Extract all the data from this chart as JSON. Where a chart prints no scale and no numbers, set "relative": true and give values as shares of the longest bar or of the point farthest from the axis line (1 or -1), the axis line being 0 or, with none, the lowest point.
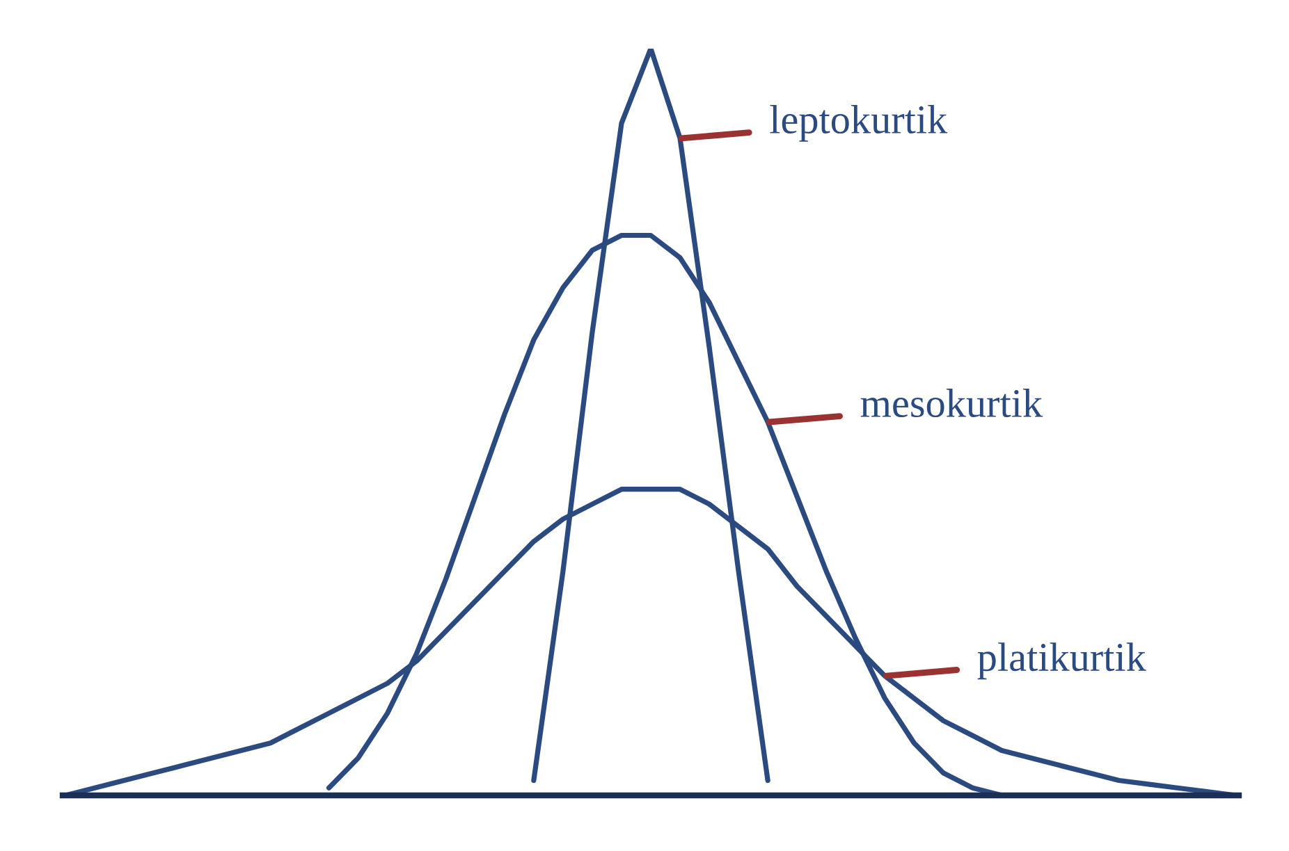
{
  "chart_data": {
    "type": "line",
    "relative": true,
    "categories": [
      null,
      null,
      null,
      null,
      null,
      null,
      null,
      null,
      null,
      null,
      null,
      null,
      null,
      null,
      null,
      null,
      null,
      null,
      null,
      null,
      null,
      null,
      null,
      null,
      null,
      null,
      null,
      null,
      null,
      null,
      null,
      null,
      null,
      null,
      null,
      null,
      null,
      null,
      null,
      null,
      null
    ],
    "series": [
      {
        "name": "leptokurtik",
        "color": "#2b4a80",
        "values": [
          null,
          null,
          null,
          null,
          null,
          null,
          null,
          null,
          null,
          null,
          null,
          null,
          null,
          null,
          null,
          null,
          0.02,
          0.3,
          0.62,
          0.9,
          1.0,
          0.88,
          0.6,
          0.3,
          0.02,
          null,
          null,
          null,
          null,
          null,
          null,
          null,
          null,
          null,
          null,
          null,
          null,
          null,
          null,
          null,
          null
        ]
      },
      {
        "name": "mesokurtik",
        "color": "#2b4a80",
        "values": [
          null,
          null,
          null,
          null,
          null,
          null,
          null,
          null,
          null,
          0.01,
          0.05,
          0.11,
          0.19,
          0.29,
          0.4,
          0.51,
          0.61,
          0.68,
          0.73,
          0.75,
          0.75,
          0.72,
          0.66,
          0.58,
          0.5,
          0.4,
          0.3,
          0.21,
          0.13,
          0.07,
          0.03,
          0.01,
          0.0,
          null,
          null,
          null,
          null,
          null,
          null,
          null,
          null
        ]
      },
      {
        "name": "platikurtik",
        "color": "#2b4a80",
        "values": [
          0.0,
          0.01,
          0.02,
          0.03,
          0.04,
          0.05,
          0.06,
          0.07,
          0.09,
          0.11,
          0.13,
          0.15,
          0.18,
          0.22,
          0.26,
          0.3,
          0.34,
          0.37,
          0.39,
          0.41,
          0.41,
          0.41,
          0.39,
          0.36,
          0.33,
          0.28,
          0.24,
          0.2,
          0.16,
          0.13,
          0.1,
          0.08,
          0.06,
          0.05,
          0.04,
          0.03,
          0.02,
          0.015,
          0.01,
          0.005,
          0.0
        ]
      }
    ],
    "legend": false
  }
}
